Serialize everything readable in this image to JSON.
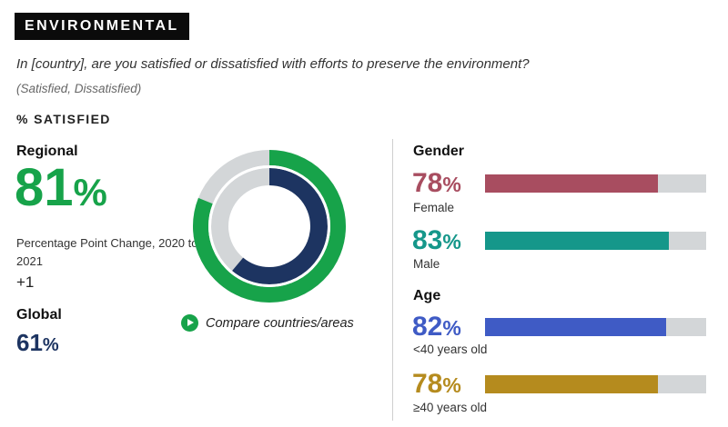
{
  "header": {
    "tag": "ENVIRONMENTAL",
    "question": "In [country], are you satisfied or dissatisfied with efforts to preserve the environment?",
    "options": "(Satisfied, Dissatisfied)",
    "metric_label": "% SATISFIED"
  },
  "regional": {
    "label": "Regional",
    "value": "81",
    "pct_sign": "%",
    "change_label": "Percentage Point Change, 2020 to 2021",
    "change_value": "+1"
  },
  "global": {
    "label": "Global",
    "value": "61",
    "pct_sign": "%"
  },
  "compare_link": "Compare countries/areas",
  "colors": {
    "regional": "#17a34a",
    "global": "#1d3461",
    "female": "#a84d60",
    "male": "#15978a",
    "under40": "#3f5bc5",
    "over40": "#b58b1e",
    "track": "#d3d6d8"
  },
  "chart_data": [
    {
      "type": "pie",
      "name": "donut",
      "series": [
        {
          "name": "Regional",
          "value": 81
        },
        {
          "name": "Global",
          "value": 61
        }
      ]
    },
    {
      "type": "bar",
      "sections": [
        {
          "title": "Gender",
          "items": [
            {
              "label": "Female",
              "value": 78,
              "display": "78",
              "color_key": "female"
            },
            {
              "label": "Male",
              "value": 83,
              "display": "83",
              "color_key": "male"
            }
          ]
        },
        {
          "title": "Age",
          "items": [
            {
              "label": "<40 years old",
              "value": 82,
              "display": "82",
              "color_key": "under40"
            },
            {
              "label": "≥40 years old",
              "value": 78,
              "display": "78",
              "color_key": "over40"
            }
          ]
        }
      ],
      "ylim": [
        0,
        100
      ]
    }
  ]
}
